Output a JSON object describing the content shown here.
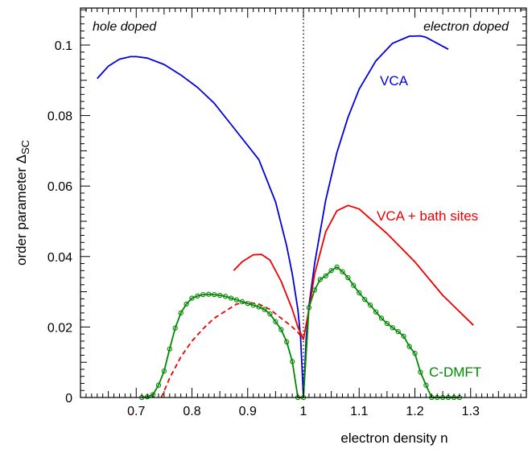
{
  "chart_data": {
    "type": "line",
    "title": "",
    "xlabel": "electron density n",
    "ylabel_main": "order parameter Δ",
    "ylabel_sub": "SC",
    "xlim": [
      0.6,
      1.4
    ],
    "ylim": [
      0,
      0.1105
    ],
    "x_ticks": [
      0.7,
      0.8,
      0.9,
      1.0,
      1.1,
      1.2,
      1.3
    ],
    "x_tick_labels": [
      "0.7",
      "0.8",
      "0.9",
      "1",
      "1.1",
      "1.2",
      "1.3"
    ],
    "y_ticks": [
      0,
      0.02,
      0.04,
      0.06,
      0.08,
      0.1
    ],
    "y_tick_labels": [
      "0",
      "0.02",
      "0.04",
      "0.06",
      "0.08",
      "0.1"
    ],
    "grid": false,
    "annotations": {
      "left": "hole doped",
      "right": "electron doped"
    },
    "reference_line": {
      "x": 1.0,
      "style": "dotted"
    },
    "series": [
      {
        "name": "VCA",
        "color": "#0000dd",
        "style": "solid",
        "markers": false,
        "x": [
          0.63,
          0.65,
          0.67,
          0.69,
          0.7,
          0.72,
          0.75,
          0.78,
          0.81,
          0.84,
          0.87,
          0.9,
          0.92,
          0.95,
          0.97,
          0.98,
          0.99,
          0.995,
          1.0,
          1.005,
          1.01,
          1.02,
          1.04,
          1.06,
          1.08,
          1.1,
          1.13,
          1.16,
          1.19,
          1.21,
          1.22,
          1.24,
          1.26
        ],
        "y": [
          0.0905,
          0.094,
          0.096,
          0.0967,
          0.0967,
          0.0963,
          0.0945,
          0.0915,
          0.088,
          0.0835,
          0.0775,
          0.0715,
          0.0675,
          0.0555,
          0.043,
          0.035,
          0.025,
          0.017,
          0.0,
          0.017,
          0.026,
          0.038,
          0.056,
          0.0695,
          0.0795,
          0.0875,
          0.0955,
          0.1005,
          0.1025,
          0.1026,
          0.1022,
          0.1005,
          0.0988
        ]
      },
      {
        "name": "VCA + bath sites",
        "color": "#ee0000",
        "style": "solid",
        "markers": false,
        "x": [
          0.875,
          0.89,
          0.91,
          0.925,
          0.94,
          0.96,
          0.98,
          0.99,
          1.0,
          1.01,
          1.02,
          1.04,
          1.06,
          1.08,
          1.1,
          1.15,
          1.2,
          1.25,
          1.305
        ],
        "y": [
          0.036,
          0.0385,
          0.0405,
          0.0406,
          0.039,
          0.033,
          0.025,
          0.02,
          0.0165,
          0.025,
          0.035,
          0.047,
          0.053,
          0.0545,
          0.0535,
          0.0465,
          0.0385,
          0.029,
          0.0205
        ]
      },
      {
        "name": "",
        "color": "#ee0000",
        "style": "dashed",
        "markers": false,
        "x": [
          0.745,
          0.76,
          0.78,
          0.8,
          0.82,
          0.84,
          0.86,
          0.88,
          0.9,
          0.92,
          0.94,
          0.96,
          0.98,
          0.99,
          1.0
        ],
        "y": [
          0.0,
          0.0055,
          0.0115,
          0.016,
          0.0195,
          0.0225,
          0.0245,
          0.0265,
          0.027,
          0.0265,
          0.025,
          0.0225,
          0.02,
          0.0185,
          0.0165
        ]
      },
      {
        "name": "C-DMFT",
        "color": "#008800",
        "style": "solid",
        "markers": true,
        "x": [
          0.71,
          0.72,
          0.73,
          0.74,
          0.75,
          0.76,
          0.77,
          0.78,
          0.79,
          0.8,
          0.81,
          0.82,
          0.83,
          0.84,
          0.85,
          0.86,
          0.87,
          0.88,
          0.89,
          0.9,
          0.91,
          0.92,
          0.93,
          0.94,
          0.95,
          0.96,
          0.97,
          0.98,
          0.99,
          1.0,
          1.01,
          1.02,
          1.03,
          1.04,
          1.05,
          1.06,
          1.07,
          1.08,
          1.09,
          1.1,
          1.11,
          1.12,
          1.13,
          1.14,
          1.15,
          1.16,
          1.17,
          1.18,
          1.19,
          1.2,
          1.21,
          1.22,
          1.23,
          1.24,
          1.25,
          1.26,
          1.27,
          1.28
        ],
        "y": [
          0.0,
          0.0002,
          0.0008,
          0.0035,
          0.0075,
          0.0138,
          0.0197,
          0.024,
          0.0265,
          0.0282,
          0.0288,
          0.0292,
          0.0293,
          0.0292,
          0.029,
          0.0287,
          0.0282,
          0.0277,
          0.0272,
          0.0267,
          0.0262,
          0.0257,
          0.025,
          0.0237,
          0.0215,
          0.0193,
          0.0158,
          0.0102,
          0.0,
          0.0,
          0.0255,
          0.0305,
          0.0335,
          0.0345,
          0.036,
          0.037,
          0.0357,
          0.034,
          0.0318,
          0.0297,
          0.0278,
          0.0262,
          0.0243,
          0.0225,
          0.021,
          0.0198,
          0.0187,
          0.0174,
          0.0145,
          0.0125,
          0.0072,
          0.0035,
          0.0,
          0.0,
          0.0,
          0.0,
          0.0,
          0.0
        ]
      }
    ],
    "series_labels": [
      "VCA",
      "VCA + bath sites",
      "C-DMFT"
    ]
  }
}
